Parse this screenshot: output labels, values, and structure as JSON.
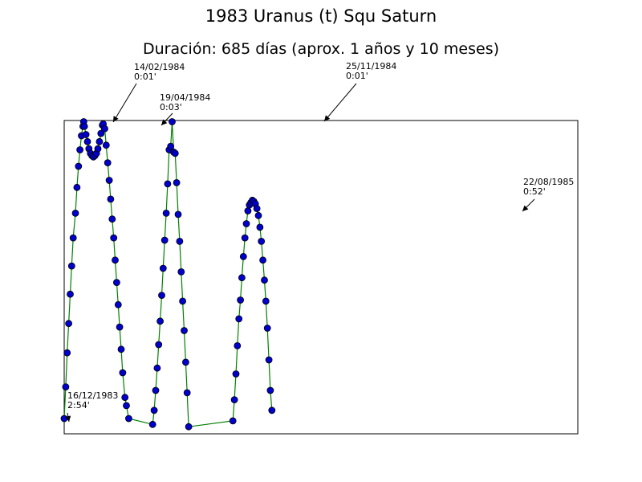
{
  "chart_data": {
    "type": "line",
    "title": "1983 Uranus (t) Squ Saturn",
    "subtitle": "Duración: 685 días (aprox. 1 años y 10 meses)",
    "xlabel": "",
    "ylabel": "",
    "xlim": [
      0,
      685
    ],
    "ylim": [
      0.0,
      2.67
    ],
    "grid": false,
    "series": [
      {
        "line_color": "#008000",
        "marker_color": "#0000cc",
        "points": [
          [
            0,
            2.54
          ],
          [
            2,
            2.27
          ],
          [
            4,
            1.98
          ],
          [
            6,
            1.73
          ],
          [
            8,
            1.48
          ],
          [
            10,
            1.24
          ],
          [
            12,
            1.0
          ],
          [
            15,
            0.79
          ],
          [
            17,
            0.57
          ],
          [
            19,
            0.39
          ],
          [
            21,
            0.25
          ],
          [
            23,
            0.13
          ],
          [
            25,
            0.05
          ],
          [
            26,
            0.01
          ],
          [
            27,
            0.05
          ],
          [
            29,
            0.12
          ],
          [
            31,
            0.18
          ],
          [
            33,
            0.24
          ],
          [
            35,
            0.28
          ],
          [
            37,
            0.3
          ],
          [
            39,
            0.31
          ],
          [
            41,
            0.3
          ],
          [
            43,
            0.28
          ],
          [
            45,
            0.24
          ],
          [
            47,
            0.18
          ],
          [
            49,
            0.11
          ],
          [
            51,
            0.04
          ],
          [
            52,
            0.03
          ],
          [
            54,
            0.07
          ],
          [
            56,
            0.21
          ],
          [
            58,
            0.36
          ],
          [
            60,
            0.51
          ],
          [
            62,
            0.67
          ],
          [
            64,
            0.84
          ],
          [
            66,
            1.0
          ],
          [
            68,
            1.19
          ],
          [
            70,
            1.38
          ],
          [
            72,
            1.57
          ],
          [
            74,
            1.76
          ],
          [
            76,
            1.95
          ],
          [
            78,
            2.15
          ],
          [
            81,
            2.36
          ],
          [
            83,
            2.43
          ],
          [
            86,
            2.54
          ],
          [
            118,
            2.59
          ],
          [
            120,
            2.47
          ],
          [
            122,
            2.3
          ],
          [
            124,
            2.11
          ],
          [
            126,
            1.91
          ],
          [
            128,
            1.71
          ],
          [
            130,
            1.49
          ],
          [
            132,
            1.26
          ],
          [
            134,
            1.02
          ],
          [
            136,
            0.79
          ],
          [
            138,
            0.54
          ],
          [
            140,
            0.25
          ],
          [
            142,
            0.22
          ],
          [
            144,
            0.01
          ],
          [
            146,
            0.27
          ],
          [
            148,
            0.28
          ],
          [
            150,
            0.53
          ],
          [
            152,
            0.8
          ],
          [
            154,
            1.03
          ],
          [
            156,
            1.29
          ],
          [
            158,
            1.54
          ],
          [
            160,
            1.79
          ],
          [
            162,
            2.06
          ],
          [
            164,
            2.32
          ],
          [
            166,
            2.61
          ],
          [
            225,
            2.56
          ],
          [
            227,
            2.38
          ],
          [
            229,
            2.16
          ],
          [
            231,
            1.92
          ],
          [
            233,
            1.69
          ],
          [
            235,
            1.53
          ],
          [
            237,
            1.34
          ],
          [
            239,
            1.16
          ],
          [
            241,
            1.0
          ],
          [
            243,
            0.88
          ],
          [
            245,
            0.77
          ],
          [
            247,
            0.72
          ],
          [
            249,
            0.7
          ],
          [
            251,
            0.68
          ],
          [
            253,
            0.69
          ],
          [
            255,
            0.71
          ],
          [
            257,
            0.75
          ],
          [
            259,
            0.81
          ],
          [
            261,
            0.91
          ],
          [
            263,
            1.03
          ],
          [
            265,
            1.19
          ],
          [
            267,
            1.36
          ],
          [
            269,
            1.54
          ],
          [
            271,
            1.77
          ],
          [
            273,
            2.04
          ],
          [
            275,
            2.3
          ],
          [
            277,
            2.47
          ]
        ]
      }
    ],
    "annotations": [
      {
        "date": "16/12/1983",
        "value": "2:54'"
      },
      {
        "date": "14/02/1984",
        "value": "0:01'"
      },
      {
        "date": "19/04/1984",
        "value": "0:03'"
      },
      {
        "date": "25/11/1984",
        "value": "0:01'"
      },
      {
        "date": "22/08/1985",
        "value": "0:52'"
      }
    ]
  }
}
